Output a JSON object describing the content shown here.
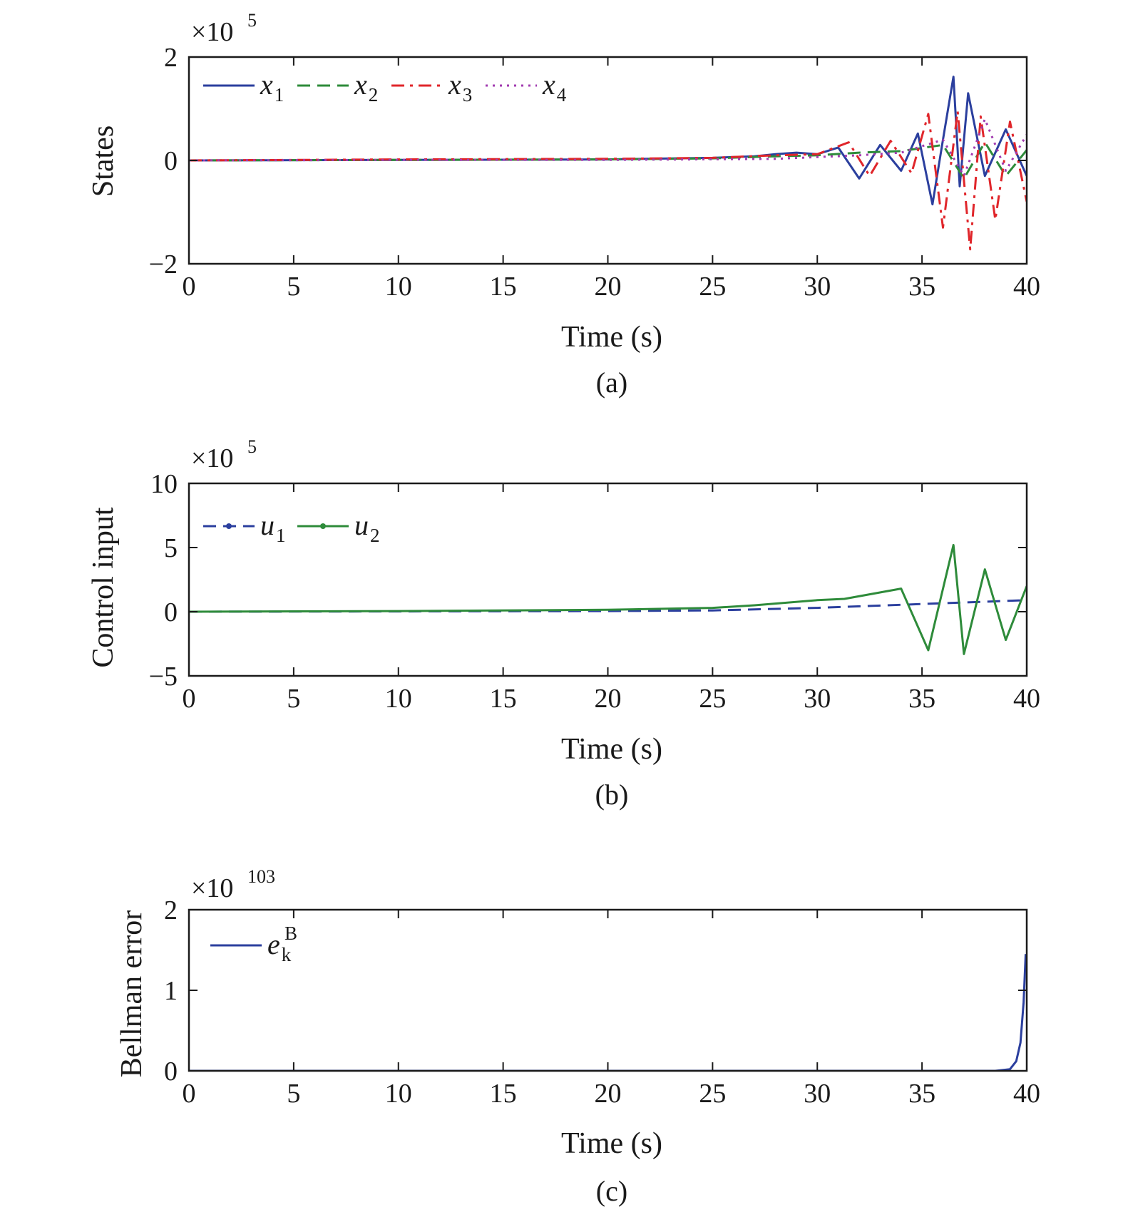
{
  "chart_data": [
    {
      "type": "line",
      "caption": "(a)",
      "xlabel": "Time (s)",
      "ylabel": "States",
      "multiplier": {
        "base": "×10",
        "exp": "5"
      },
      "xlim": [
        0,
        40
      ],
      "ylim": [
        -2,
        2
      ],
      "xticks": [
        "0",
        "5",
        "10",
        "15",
        "20",
        "25",
        "30",
        "35",
        "40"
      ],
      "yticks": [
        "2",
        "0",
        "−2"
      ],
      "ytick_values": [
        2,
        0,
        -2
      ],
      "legend_position": "top-left",
      "legend_orientation": "horizontal",
      "series": [
        {
          "name": "x",
          "sub": "1",
          "color": "#2b3f9e",
          "style": "solid",
          "x": [
            0,
            10,
            20,
            25,
            27,
            28,
            29,
            30,
            31,
            32,
            33,
            34,
            34.8,
            35.5,
            36,
            36.5,
            36.8,
            37.2,
            38,
            39,
            40
          ],
          "y": [
            0,
            0.01,
            0.02,
            0.05,
            0.08,
            0.12,
            0.15,
            0.12,
            0.25,
            -0.35,
            0.3,
            -0.2,
            0.52,
            -0.85,
            0.4,
            1.62,
            -0.5,
            1.3,
            -0.3,
            0.6,
            -0.3
          ]
        },
        {
          "name": "x",
          "sub": "2",
          "color": "#2e8b3a",
          "style": "dashed",
          "x": [
            0,
            10,
            20,
            25,
            28,
            30,
            32,
            34,
            36,
            37,
            38,
            39,
            40
          ],
          "y": [
            0,
            0.01,
            0.02,
            0.04,
            0.08,
            0.1,
            0.15,
            0.18,
            0.3,
            -0.35,
            0.35,
            -0.3,
            0.2
          ]
        },
        {
          "name": "x",
          "sub": "3",
          "color": "#e0262b",
          "style": "dashdot",
          "x": [
            0,
            10,
            20,
            25,
            28,
            30,
            31.5,
            32.5,
            33.5,
            34.5,
            35.3,
            36,
            36.7,
            37.3,
            37.8,
            38.5,
            39.2,
            40
          ],
          "y": [
            0,
            0.02,
            0.03,
            0.05,
            0.1,
            0.12,
            0.35,
            -0.3,
            0.38,
            -0.25,
            0.9,
            -1.3,
            0.95,
            -1.72,
            0.85,
            -1.15,
            0.75,
            -0.8
          ]
        },
        {
          "name": "x",
          "sub": "4",
          "color": "#a23bb0",
          "style": "dotted",
          "x": [
            0,
            10,
            20,
            28,
            32,
            34,
            36,
            37,
            38,
            39,
            40
          ],
          "y": [
            0,
            0.01,
            0.01,
            0.03,
            0.1,
            0.15,
            0.4,
            -0.3,
            0.8,
            -0.2,
            0.5
          ]
        }
      ]
    },
    {
      "type": "line",
      "caption": "(b)",
      "xlabel": "Time (s)",
      "ylabel": "Control input",
      "multiplier": {
        "base": "×10",
        "exp": "5"
      },
      "xlim": [
        0,
        40
      ],
      "ylim": [
        -5,
        10
      ],
      "xticks": [
        "0",
        "5",
        "10",
        "15",
        "20",
        "25",
        "30",
        "35",
        "40"
      ],
      "yticks": [
        "10",
        "5",
        "0",
        "−5"
      ],
      "ytick_values": [
        10,
        5,
        0,
        -5
      ],
      "legend_position": "top-left",
      "legend_orientation": "horizontal",
      "series": [
        {
          "name": "u",
          "sub": "1",
          "color": "#2b3f9e",
          "style": "dashed",
          "x": [
            0,
            10,
            20,
            25,
            30,
            35,
            40
          ],
          "y": [
            0,
            0.02,
            0.05,
            0.1,
            0.3,
            0.6,
            0.9
          ]
        },
        {
          "name": "u",
          "sub": "2",
          "color": "#2e8b3a",
          "style": "solid",
          "x": [
            0,
            10,
            20,
            25,
            27,
            30,
            31.3,
            34,
            35.3,
            36.5,
            37,
            38,
            39,
            40
          ],
          "y": [
            0,
            0.05,
            0.15,
            0.3,
            0.5,
            0.9,
            1.0,
            1.8,
            -3.0,
            5.2,
            -3.3,
            3.3,
            -2.2,
            2.0
          ]
        }
      ]
    },
    {
      "type": "line",
      "caption": "(c)",
      "xlabel": "Time (s)",
      "ylabel": "Bellman error",
      "multiplier": {
        "base": "×10",
        "exp": "103"
      },
      "xlim": [
        0,
        40
      ],
      "ylim": [
        0,
        2
      ],
      "xticks": [
        "0",
        "5",
        "10",
        "15",
        "20",
        "25",
        "30",
        "35",
        "40"
      ],
      "yticks": [
        "2",
        "1",
        "0"
      ],
      "ytick_values": [
        2,
        1,
        0
      ],
      "legend_position": "top-left",
      "legend_orientation": "horizontal",
      "series": [
        {
          "name": "e",
          "sub": "k",
          "sup": "B",
          "color": "#2b3f9e",
          "style": "solid",
          "x": [
            0,
            10,
            20,
            30,
            38.5,
            39.2,
            39.5,
            39.7,
            39.85,
            39.95
          ],
          "y": [
            0,
            0,
            0,
            0,
            0.0,
            0.02,
            0.12,
            0.35,
            0.85,
            1.45
          ]
        }
      ]
    }
  ]
}
